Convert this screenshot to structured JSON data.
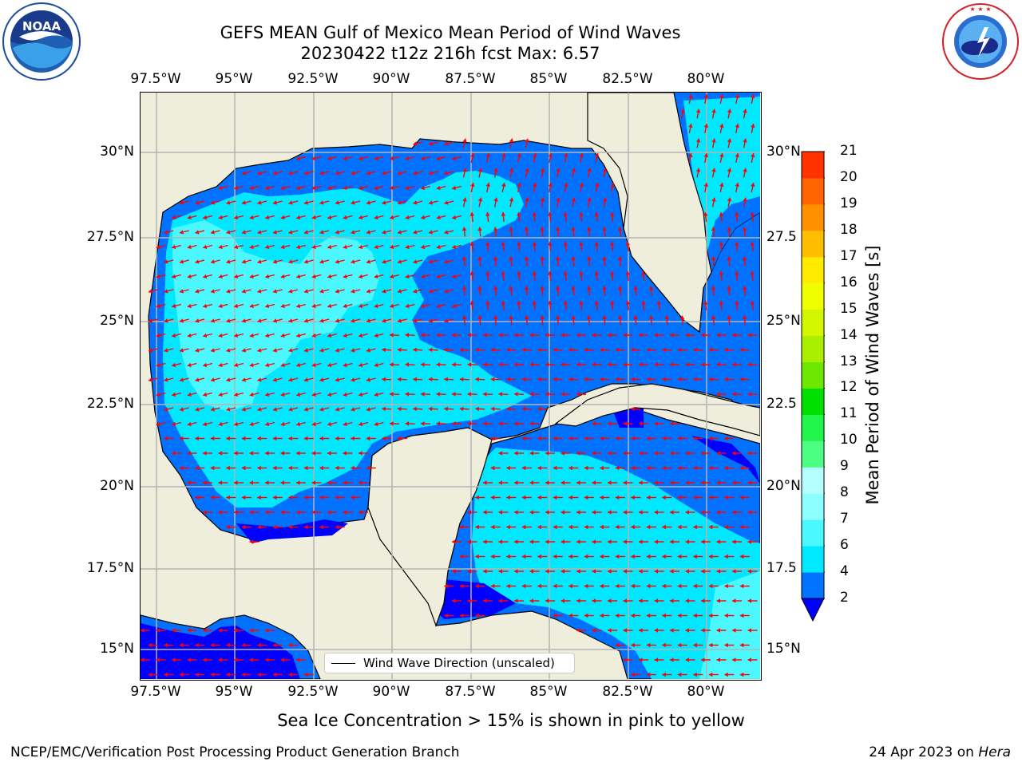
{
  "header": {
    "title_line1": "GEFS MEAN Gulf of Mexico Mean Period of Wind Waves",
    "title_line2": "20230422 t12z 216h fcst   Max: 6.57"
  },
  "logos": {
    "noaa_text": "NOAA",
    "noaa_ring": "NATIONAL OCEANIC AND ATMOSPHERIC ADMINISTRATION · U.S. DEPARTMENT OF COMMERCE",
    "nws_ring": "NATIONAL WEATHER SERVICE"
  },
  "axes": {
    "lon_ticks": [
      "97.5°W",
      "95°W",
      "92.5°W",
      "90°W",
      "87.5°W",
      "85°W",
      "82.5°W",
      "80°W"
    ],
    "lat_ticks_left": [
      "30°N",
      "27.5°N",
      "25°N",
      "22.5°N",
      "20°N",
      "17.5°N",
      "15°N"
    ],
    "lat_ticks_right": [
      "30°N",
      "27.5",
      "25°N",
      "22.5",
      "20°N",
      "17.5",
      "15°N"
    ]
  },
  "legend": {
    "label": "Wind Wave Direction (unscaled)"
  },
  "colorbar": {
    "label": "Mean Period of Wind Waves [s]",
    "ticks": [
      "2",
      "4",
      "6",
      "7",
      "8",
      "9",
      "10",
      "11",
      "12",
      "13",
      "14",
      "15",
      "16",
      "17",
      "18",
      "19",
      "20",
      "21"
    ],
    "colors": [
      "#0072ff",
      "#00e8ff",
      "#4cf8ff",
      "#8cffff",
      "#b4ffff",
      "#4cff82",
      "#22f54c",
      "#00e000",
      "#6ee800",
      "#aaee00",
      "#d2f500",
      "#f0ff00",
      "#ffeb00",
      "#ffbe00",
      "#ff9100",
      "#ff6400",
      "#ff3200",
      "#ff0000"
    ],
    "extend_color": "#0000ff"
  },
  "map_colors": {
    "land": "#efeddc",
    "lt2": "#0000ff",
    "p2_4": "#0072ff",
    "p4_6": "#00e8ff",
    "p6_7": "#4cf8ff",
    "arrow": "#ff0000",
    "grid": "#b4b4b4"
  },
  "caption": "Sea Ice Concentration > 15% is shown in pink to yellow",
  "footer": {
    "left": "NCEP/EMC/Verification Post Processing Product Generation Branch",
    "right_date": "24 Apr 2023 on ",
    "right_machine": "Hera"
  }
}
